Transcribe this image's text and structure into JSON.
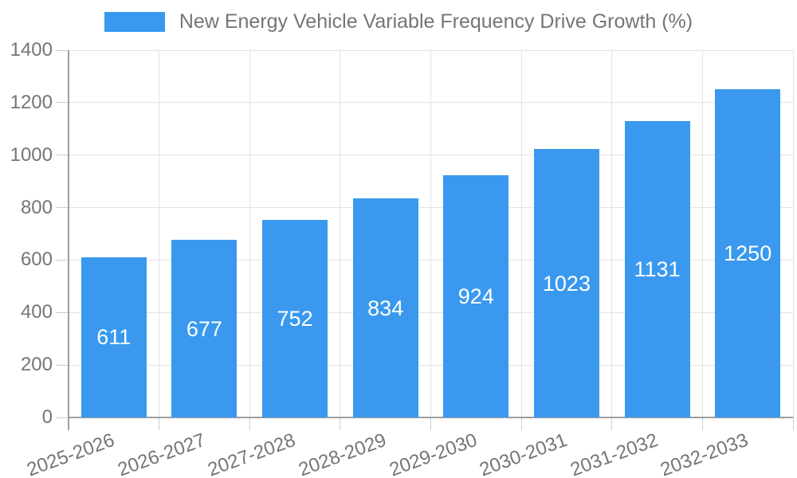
{
  "chart_data": {
    "type": "bar",
    "title": "New Energy Vehicle Variable Frequency Drive Growth (%)",
    "categories": [
      "2025-2026",
      "2026-2027",
      "2027-2028",
      "2028-2029",
      "2029-2030",
      "2030-2031",
      "2031-2032",
      "2032-2033"
    ],
    "values": [
      611,
      677,
      752,
      834,
      924,
      1023,
      1131,
      1250
    ],
    "xlabel": "",
    "ylabel": "",
    "ylim": [
      0,
      1400
    ],
    "ytick_step": 200,
    "grid": true,
    "legend_position": "top-center",
    "colors": {
      "bar": "#3A99EE",
      "value_label": "#ffffff",
      "text": "#757575",
      "axis": "#9e9e9e",
      "tick": "#cccccc",
      "grid": "#e3e3e3",
      "background": "#ffffff"
    }
  }
}
